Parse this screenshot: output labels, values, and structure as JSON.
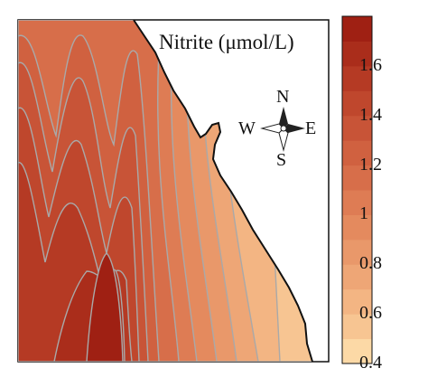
{
  "map": {
    "title": "Nitrite (μmol/L)",
    "compass": {
      "n": "N",
      "s": "S",
      "e": "E",
      "w": "W"
    },
    "colorbar": {
      "min": 0.4,
      "max": 1.8,
      "ticks": [
        "0.4",
        "0.6",
        "0.8",
        "1",
        "1.2",
        "1.4",
        "1.6"
      ],
      "tick_values": [
        0.4,
        0.6,
        0.8,
        1.0,
        1.2,
        1.4,
        1.6
      ],
      "colors": [
        "#fcd9a6",
        "#f7c592",
        "#f3b583",
        "#eea676",
        "#e9986a",
        "#e48a5e",
        "#de7c54",
        "#d76e4a",
        "#d06140",
        "#c85437",
        "#bf472d",
        "#b53a24",
        "#aa2d1b",
        "#9f2013"
      ]
    },
    "colors": {
      "land": "#ffffff",
      "contour_line": "#a9a9a9",
      "coast": "#111111"
    }
  }
}
